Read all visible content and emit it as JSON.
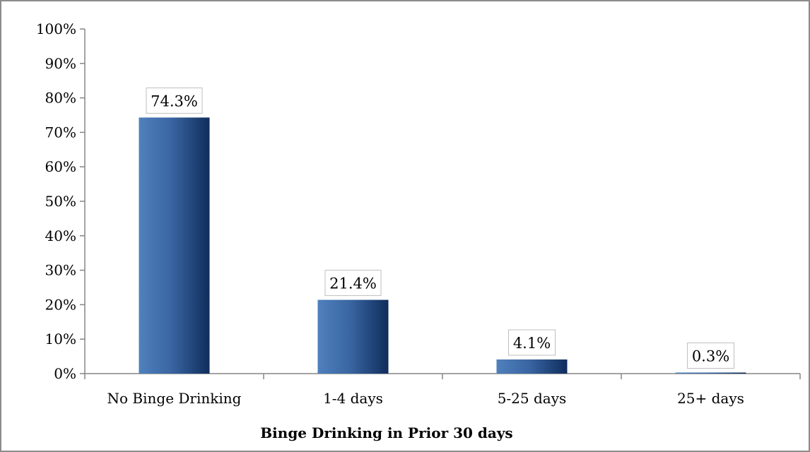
{
  "chart_data": {
    "type": "bar",
    "title": "",
    "xlabel": "Binge Drinking in Prior 30 days",
    "ylabel": "",
    "ylim": [
      0,
      100
    ],
    "yticks": [
      0,
      10,
      20,
      30,
      40,
      50,
      60,
      70,
      80,
      90,
      100
    ],
    "ytick_labels": [
      "0%",
      "10%",
      "20%",
      "30%",
      "40%",
      "50%",
      "60%",
      "70%",
      "80%",
      "90%",
      "100%"
    ],
    "categories": [
      "No Binge Drinking",
      "1-4 days",
      "5-25 days",
      "25+ days"
    ],
    "values": [
      74.3,
      21.4,
      4.1,
      0.3
    ],
    "data_labels": [
      "74.3%",
      "21.4%",
      "4.1%",
      "0.3%"
    ],
    "grid": false,
    "legend": "none",
    "bar_colors": {
      "light": "#4f81bd",
      "dark": "#0f2d5c"
    }
  }
}
